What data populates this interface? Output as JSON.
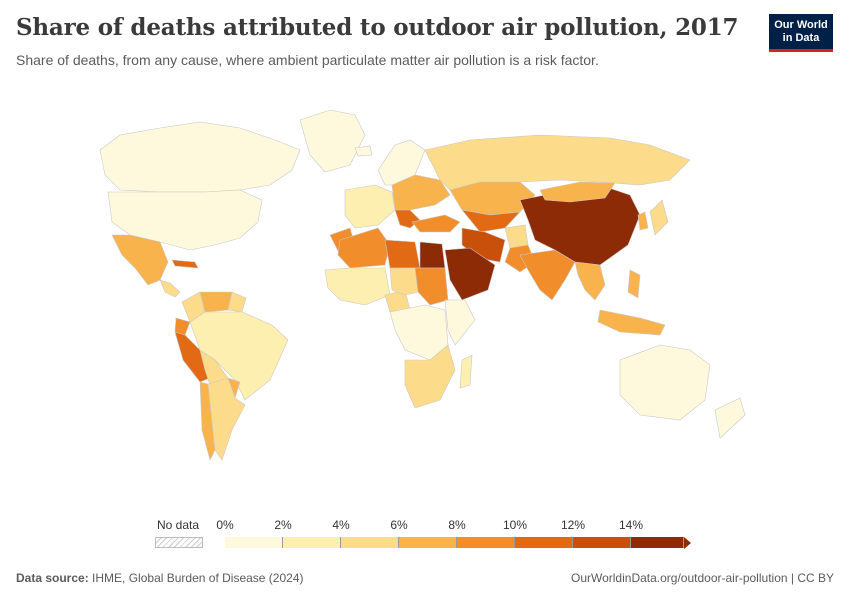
{
  "header": {
    "title": "Share of deaths attributed to outdoor air pollution, 2017",
    "subtitle": "Share of deaths, from any cause, where ambient particulate matter air pollution is a risk factor."
  },
  "logo": {
    "line1": "Our World",
    "line2": "in Data"
  },
  "legend": {
    "no_data_label": "No data",
    "ticks": [
      "0%",
      "2%",
      "4%",
      "6%",
      "8%",
      "10%",
      "12%",
      "14%"
    ],
    "colors": [
      "#fef8dc",
      "#fdefb0",
      "#fcdb8a",
      "#f9b34c",
      "#f28d2c",
      "#e26a14",
      "#c9500a",
      "#8c2b05"
    ]
  },
  "footer": {
    "source_label": "Data source:",
    "source_text": "IHME, Global Burden of Disease (2024)",
    "url": "OurWorldinData.org/outdoor-air-pollution | CC BY"
  },
  "map_data": {
    "regions": [
      {
        "name": "Canada",
        "value": 1.0
      },
      {
        "name": "United States",
        "value": 1.5
      },
      {
        "name": "Mexico",
        "value": 6.5
      },
      {
        "name": "Central America",
        "value": 5.0
      },
      {
        "name": "Cuba",
        "value": 10.0
      },
      {
        "name": "Colombia",
        "value": 5.5
      },
      {
        "name": "Venezuela",
        "value": 6.5
      },
      {
        "name": "Guyana",
        "value": 5.0
      },
      {
        "name": "Ecuador",
        "value": 8.0
      },
      {
        "name": "Peru",
        "value": 10.0
      },
      {
        "name": "Brazil",
        "value": 2.5
      },
      {
        "name": "Bolivia",
        "value": 4.0
      },
      {
        "name": "Paraguay",
        "value": 6.0
      },
      {
        "name": "Chile",
        "value": 6.5
      },
      {
        "name": "Argentina",
        "value": 5.0
      },
      {
        "name": "Greenland",
        "value": 0.5
      },
      {
        "name": "Iceland",
        "value": 1.0
      },
      {
        "name": "Scandinavia",
        "value": 1.5
      },
      {
        "name": "Western Europe",
        "value": 3.0
      },
      {
        "name": "Eastern Europe",
        "value": 7.0
      },
      {
        "name": "Balkans",
        "value": 10.0
      },
      {
        "name": "Russia",
        "value": 5.0
      },
      {
        "name": "Kazakhstan",
        "value": 7.0
      },
      {
        "name": "Central Asia",
        "value": 11.0
      },
      {
        "name": "Turkey",
        "value": 8.0
      },
      {
        "name": "Iran",
        "value": 13.0
      },
      {
        "name": "Afghanistan",
        "value": 4.0
      },
      {
        "name": "Pakistan",
        "value": 9.0
      },
      {
        "name": "India",
        "value": 8.0
      },
      {
        "name": "China",
        "value": 14.5
      },
      {
        "name": "Mongolia",
        "value": 7.0
      },
      {
        "name": "Japan",
        "value": 4.0
      },
      {
        "name": "Korea",
        "value": 6.0
      },
      {
        "name": "Southeast Asia",
        "value": 6.5
      },
      {
        "name": "Indonesia",
        "value": 7.0
      },
      {
        "name": "Philippines",
        "value": 7.5
      },
      {
        "name": "Australia",
        "value": 1.5
      },
      {
        "name": "New Zealand",
        "value": 1.0
      },
      {
        "name": "Morocco",
        "value": 8.0
      },
      {
        "name": "Algeria",
        "value": 9.0
      },
      {
        "name": "Libya",
        "value": 10.0
      },
      {
        "name": "Egypt",
        "value": 14.0
      },
      {
        "name": "Saudi Arabia",
        "value": 14.0
      },
      {
        "name": "West Africa",
        "value": 3.5
      },
      {
        "name": "Nigeria",
        "value": 4.5
      },
      {
        "name": "Chad",
        "value": 5.5
      },
      {
        "name": "Sudan",
        "value": 8.0
      },
      {
        "name": "Central Africa",
        "value": 1.5
      },
      {
        "name": "East Africa",
        "value": 1.5
      },
      {
        "name": "Southern Africa",
        "value": 4.0
      },
      {
        "name": "Madagascar",
        "value": 2.0
      }
    ]
  }
}
